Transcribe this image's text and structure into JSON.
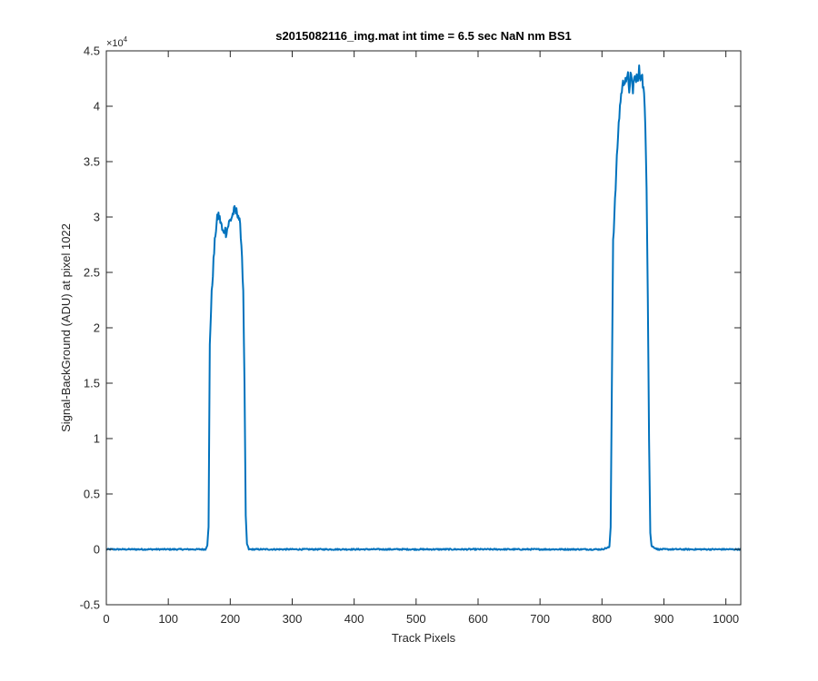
{
  "chart_data": {
    "type": "line",
    "title": "s2015082116_img.mat int time = 6.5 sec  NaN nm BS1",
    "xlabel": "Track Pixels",
    "ylabel": "Signal-BackGround (ADU) at pixel 1022",
    "xlim": [
      0,
      1024
    ],
    "ylim": [
      -5000,
      45000
    ],
    "x_ticks": [
      0,
      100,
      200,
      300,
      400,
      500,
      600,
      700,
      800,
      900,
      1000
    ],
    "y_ticks": [
      -5000,
      0,
      5000,
      10000,
      15000,
      20000,
      25000,
      30000,
      35000,
      40000,
      45000
    ],
    "y_tick_labels": [
      "-0.5",
      "0",
      "0.5",
      "1",
      "1.5",
      "2",
      "2.5",
      "3",
      "3.5",
      "4",
      "4.5"
    ],
    "y_exponent": {
      "base": "×10",
      "power": "4"
    },
    "grid": false,
    "series": [
      {
        "color": "#0072BD",
        "x": [
          0,
          160,
          163,
          165,
          167,
          170,
          173,
          176,
          179,
          181,
          183,
          185,
          187,
          189,
          191,
          193,
          195,
          197,
          199,
          201,
          203,
          205,
          207,
          209,
          211,
          213,
          215,
          217,
          219,
          221,
          223,
          225,
          227,
          230,
          240,
          400,
          600,
          800,
          812,
          814,
          816,
          818,
          820,
          823,
          826,
          829,
          832,
          834,
          836,
          838,
          840,
          842,
          844,
          846,
          848,
          850,
          852,
          854,
          856,
          858,
          860,
          862,
          864,
          866,
          868,
          870,
          872,
          874,
          876,
          878,
          880,
          890,
          1024
        ],
        "y": [
          0,
          0,
          400,
          2000,
          18500,
          23000,
          26000,
          28500,
          29800,
          30200,
          29800,
          29500,
          28800,
          28500,
          29000,
          28600,
          28900,
          29300,
          29600,
          29800,
          30100,
          30400,
          30600,
          30400,
          30500,
          30200,
          29500,
          28500,
          26500,
          23000,
          15000,
          3000,
          500,
          0,
          0,
          0,
          0,
          0,
          200,
          2000,
          15000,
          28000,
          30000,
          34000,
          37500,
          40000,
          41500,
          42000,
          42300,
          42600,
          42200,
          42700,
          41500,
          42800,
          42200,
          41400,
          42600,
          42400,
          42800,
          42200,
          43300,
          42500,
          43200,
          42000,
          41000,
          38000,
          33000,
          23000,
          10000,
          1500,
          300,
          0,
          0
        ]
      }
    ]
  }
}
